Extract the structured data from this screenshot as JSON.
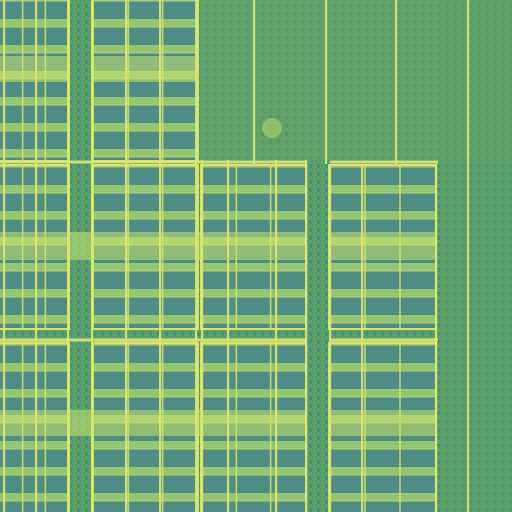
{
  "image": {
    "kind": "aerial-photo",
    "subject": "solar-panel-array-on-grassland",
    "colors": {
      "grass_dark": "#3d8a6c",
      "grass_light": "#6fb06a",
      "grass_bright": "#a6cf63",
      "panel_body": "#4e8d86",
      "panel_row_light": "#9ccb6d",
      "panel_highlight": "#c6e36b",
      "frame_line": "#d6e46a",
      "path_line": "#e2e66e"
    },
    "blocks": {
      "upper_left_columns": 2,
      "middle_block_columns": 2,
      "middle_right_block_columns": 1,
      "lower_block_columns": 3
    }
  }
}
